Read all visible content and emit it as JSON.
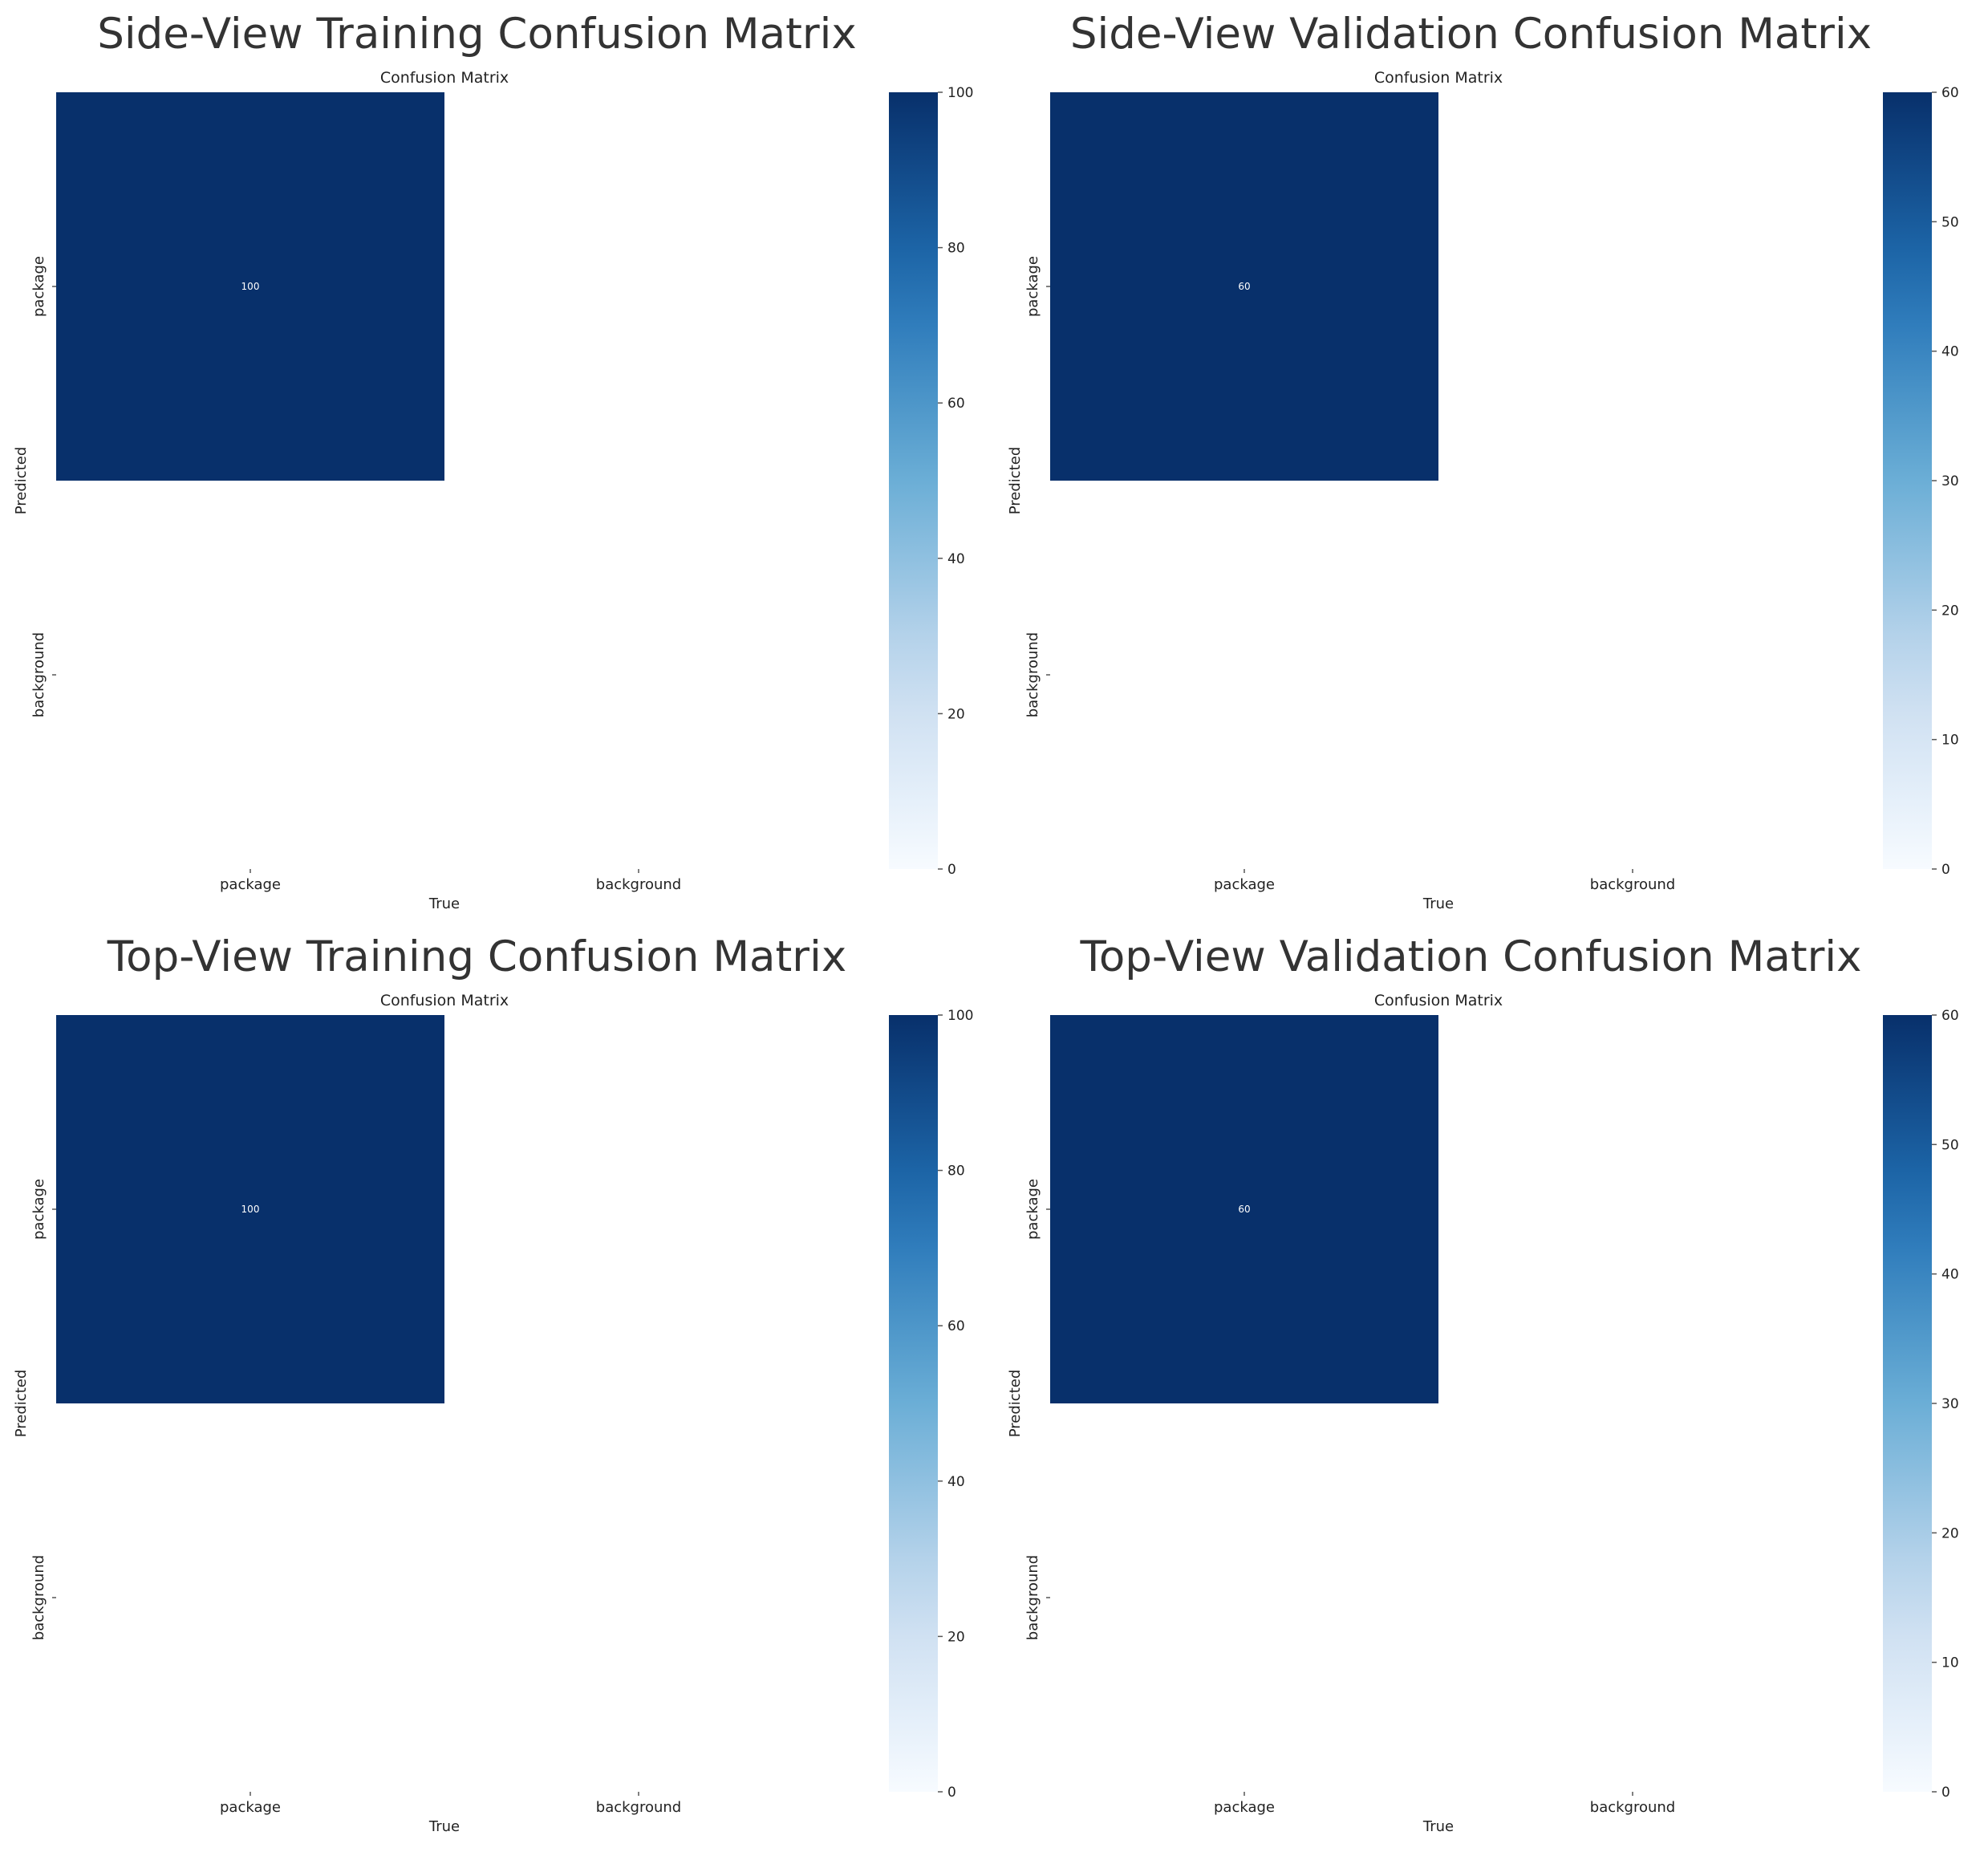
{
  "colors": {
    "heat_max": "#08306b",
    "heat_mid": "#4292c6",
    "heat_min": "#f7fbff",
    "text": "#333333"
  },
  "chart_data": [
    {
      "type": "heatmap",
      "title": "Side-View Training Confusion Matrix",
      "subtitle": "Confusion Matrix",
      "xlabel": "True",
      "ylabel": "Predicted",
      "x_categories": [
        "package",
        "background"
      ],
      "y_categories": [
        "package",
        "background"
      ],
      "values": [
        [
          100,
          0
        ],
        [
          0,
          0
        ]
      ],
      "cell_labels": [
        [
          "100",
          ""
        ],
        [
          "",
          ""
        ]
      ],
      "colorbar": {
        "range": [
          0,
          100
        ],
        "ticks": [
          "0",
          "20",
          "40",
          "60",
          "80",
          "100"
        ],
        "colormap": "Blues"
      }
    },
    {
      "type": "heatmap",
      "title": "Side-View Validation Confusion Matrix",
      "subtitle": "Confusion Matrix",
      "xlabel": "True",
      "ylabel": "Predicted",
      "x_categories": [
        "package",
        "background"
      ],
      "y_categories": [
        "package",
        "background"
      ],
      "values": [
        [
          60,
          0
        ],
        [
          0,
          0
        ]
      ],
      "cell_labels": [
        [
          "60",
          ""
        ],
        [
          "",
          ""
        ]
      ],
      "colorbar": {
        "range": [
          0,
          60
        ],
        "ticks": [
          "0",
          "10",
          "20",
          "30",
          "40",
          "50",
          "60"
        ],
        "colormap": "Blues"
      }
    },
    {
      "type": "heatmap",
      "title": "Top-View Training Confusion Matrix",
      "subtitle": "Confusion Matrix",
      "xlabel": "True",
      "ylabel": "Predicted",
      "x_categories": [
        "package",
        "background"
      ],
      "y_categories": [
        "package",
        "background"
      ],
      "values": [
        [
          100,
          0
        ],
        [
          0,
          0
        ]
      ],
      "cell_labels": [
        [
          "100",
          ""
        ],
        [
          "",
          ""
        ]
      ],
      "colorbar": {
        "range": [
          0,
          100
        ],
        "ticks": [
          "0",
          "20",
          "40",
          "60",
          "80",
          "100"
        ],
        "colormap": "Blues"
      }
    },
    {
      "type": "heatmap",
      "title": "Top-View Validation Confusion Matrix",
      "subtitle": "Confusion Matrix",
      "xlabel": "True",
      "ylabel": "Predicted",
      "x_categories": [
        "package",
        "background"
      ],
      "y_categories": [
        "package",
        "background"
      ],
      "values": [
        [
          60,
          0
        ],
        [
          0,
          0
        ]
      ],
      "cell_labels": [
        [
          "60",
          ""
        ],
        [
          "",
          ""
        ]
      ],
      "colorbar": {
        "range": [
          0,
          60
        ],
        "ticks": [
          "0",
          "10",
          "20",
          "30",
          "40",
          "50",
          "60"
        ],
        "colormap": "Blues"
      }
    }
  ]
}
